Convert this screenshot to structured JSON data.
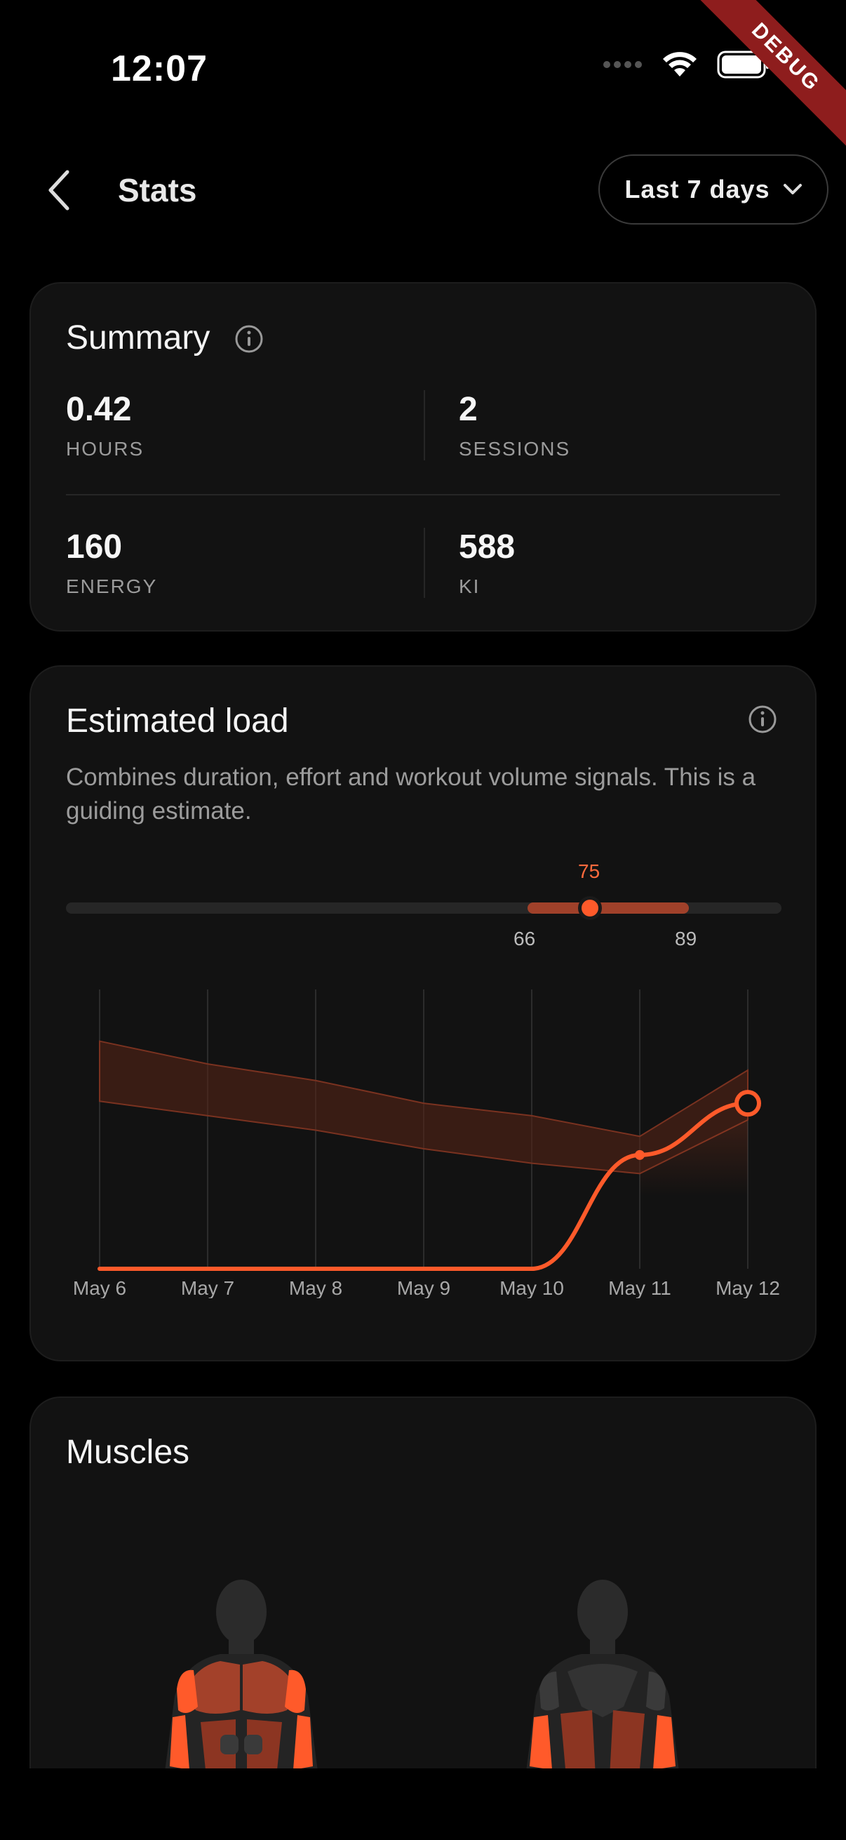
{
  "status_bar": {
    "time": "12:07",
    "debug_label": "DEBUG"
  },
  "header": {
    "title": "Stats",
    "range_label": "Last 7 days"
  },
  "summary": {
    "title": "Summary",
    "stats": [
      {
        "value": "0.42",
        "label": "HOURS"
      },
      {
        "value": "2",
        "label": "SESSIONS"
      },
      {
        "value": "160",
        "label": "ENERGY"
      },
      {
        "value": "588",
        "label": "KI"
      }
    ]
  },
  "load": {
    "title": "Estimated load",
    "description": "Combines duration, effort and workout volume signals. This is a guiding estimate.",
    "range": {
      "value": "75",
      "low": "66",
      "high": "89"
    }
  },
  "muscles": {
    "title": "Muscles"
  },
  "colors": {
    "accent": "#ff5a2a",
    "card": "#121212",
    "background": "#000000"
  },
  "chart_data": {
    "type": "line",
    "categories": [
      "May 6",
      "May 7",
      "May 8",
      "May 9",
      "May 10",
      "May 11",
      "May 12"
    ],
    "series": [
      {
        "values": [
          0,
          0,
          0,
          0,
          0,
          55,
          80
        ]
      }
    ],
    "band_upper": [
      110,
      99,
      91,
      80,
      74,
      64,
      96
    ],
    "band_lower": [
      81,
      74,
      67,
      58,
      51,
      46,
      72
    ],
    "ylim": [
      0,
      135
    ],
    "grid": "vertical"
  }
}
